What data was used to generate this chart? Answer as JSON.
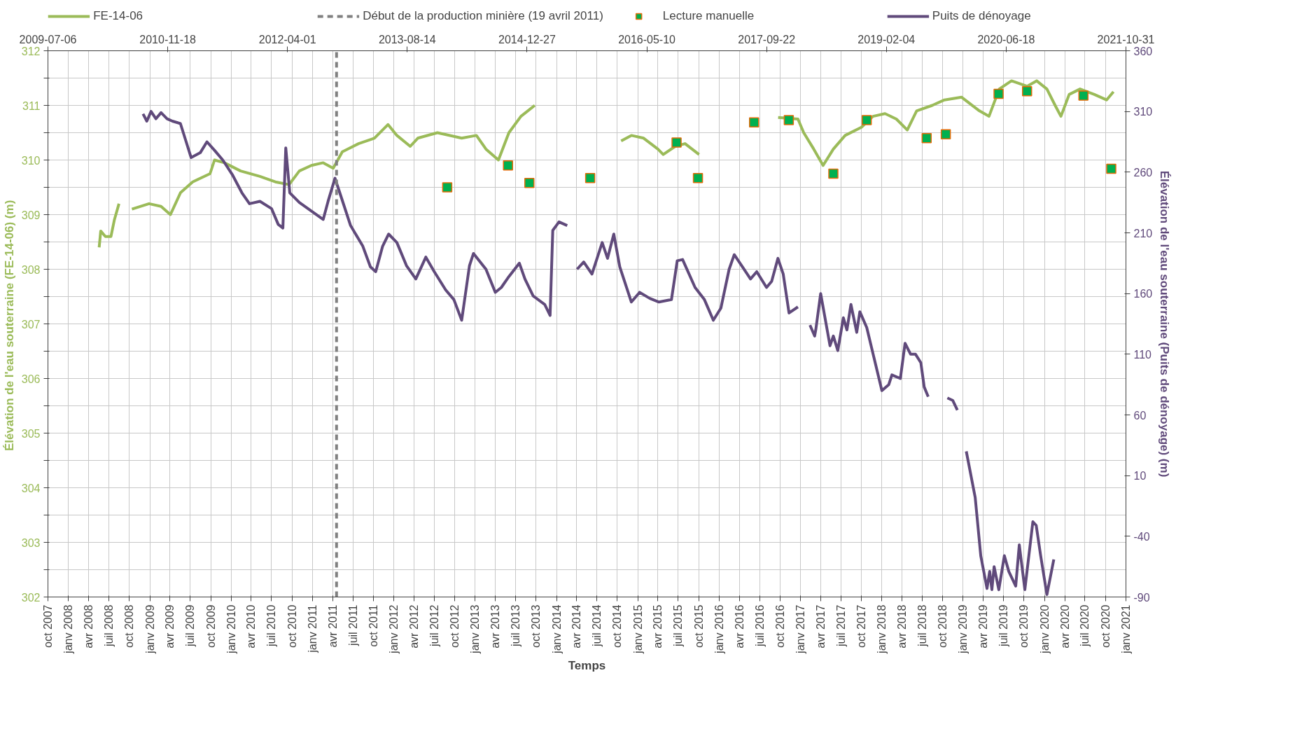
{
  "chart_data": {
    "type": "scatter",
    "xlabel": "Temps",
    "ylabel": "Élévation de l'eau souterraine (FE-14-06)  (m)",
    "y2label": "Élévation de l'eau souterraine (Puits de dénoyage) (m)",
    "xlim": [
      "2007-10-01",
      "2021-01-01"
    ],
    "xticks": [
      {
        "value": "2007-10-01",
        "label": "oct 2007"
      },
      {
        "value": "2008-01-01",
        "label": "janv 2008"
      },
      {
        "value": "2008-04-01",
        "label": "avr 2008"
      },
      {
        "value": "2008-07-01",
        "label": "juil 2008"
      },
      {
        "value": "2008-10-01",
        "label": "oct 2008"
      },
      {
        "value": "2009-01-01",
        "label": "janv 2009"
      },
      {
        "value": "2009-04-01",
        "label": "avr 2009"
      },
      {
        "value": "2009-07-01",
        "label": "juil 2009"
      },
      {
        "value": "2009-10-01",
        "label": "oct 2009"
      },
      {
        "value": "2010-01-01",
        "label": "janv 2010"
      },
      {
        "value": "2010-04-01",
        "label": "avr 2010"
      },
      {
        "value": "2010-07-01",
        "label": "juil 2010"
      },
      {
        "value": "2010-10-01",
        "label": "oct 2010"
      },
      {
        "value": "2011-01-01",
        "label": "janv 2011"
      },
      {
        "value": "2011-04-01",
        "label": "avr 2011"
      },
      {
        "value": "2011-07-01",
        "label": "juil 2011"
      },
      {
        "value": "2011-10-01",
        "label": "oct 2011"
      },
      {
        "value": "2012-01-01",
        "label": "janv 2012"
      },
      {
        "value": "2012-04-01",
        "label": "avr 2012"
      },
      {
        "value": "2012-07-01",
        "label": "juil 2012"
      },
      {
        "value": "2012-10-01",
        "label": "oct 2012"
      },
      {
        "value": "2013-01-01",
        "label": "janv 2013"
      },
      {
        "value": "2013-04-01",
        "label": "avr 2013"
      },
      {
        "value": "2013-07-01",
        "label": "juil 2013"
      },
      {
        "value": "2013-10-01",
        "label": "oct 2013"
      },
      {
        "value": "2014-01-01",
        "label": "janv 2014"
      },
      {
        "value": "2014-04-01",
        "label": "avr 2014"
      },
      {
        "value": "2014-07-01",
        "label": "juil 2014"
      },
      {
        "value": "2014-10-01",
        "label": "oct 2014"
      },
      {
        "value": "2015-01-01",
        "label": "janv 2015"
      },
      {
        "value": "2015-04-01",
        "label": "avr 2015"
      },
      {
        "value": "2015-07-01",
        "label": "juil 2015"
      },
      {
        "value": "2015-10-01",
        "label": "oct 2015"
      },
      {
        "value": "2016-01-01",
        "label": "janv 2016"
      },
      {
        "value": "2016-04-01",
        "label": "avr 2016"
      },
      {
        "value": "2016-07-01",
        "label": "juil 2016"
      },
      {
        "value": "2016-10-01",
        "label": "oct 2016"
      },
      {
        "value": "2017-01-01",
        "label": "janv 2017"
      },
      {
        "value": "2017-04-01",
        "label": "avr 2017"
      },
      {
        "value": "2017-07-01",
        "label": "juil 2017"
      },
      {
        "value": "2017-10-01",
        "label": "oct 2017"
      },
      {
        "value": "2018-01-01",
        "label": "janv 2018"
      },
      {
        "value": "2018-04-01",
        "label": "avr 2018"
      },
      {
        "value": "2018-07-01",
        "label": "juil 2018"
      },
      {
        "value": "2018-10-01",
        "label": "oct 2018"
      },
      {
        "value": "2019-01-01",
        "label": "janv 2019"
      },
      {
        "value": "2019-04-01",
        "label": "avr 2019"
      },
      {
        "value": "2019-07-01",
        "label": "juil 2019"
      },
      {
        "value": "2019-10-01",
        "label": "oct 2019"
      },
      {
        "value": "2020-01-01",
        "label": "janv 2020"
      },
      {
        "value": "2020-04-01",
        "label": "avr 2020"
      },
      {
        "value": "2020-07-01",
        "label": "juil 2020"
      },
      {
        "value": "2020-10-01",
        "label": "oct 2020"
      },
      {
        "value": "2021-01-01",
        "label": "janv 2021"
      }
    ],
    "x2lim": [
      "2009-07-06",
      "2021-10-31"
    ],
    "x2ticks": [
      "2009-07-06",
      "2010-11-18",
      "2012-04-01",
      "2013-08-14",
      "2014-12-27",
      "2016-05-10",
      "2017-09-22",
      "2019-02-04",
      "2020-06-18",
      "2021-10-31"
    ],
    "ylim": [
      302,
      312
    ],
    "yticks": [
      302,
      {
        "value": 302.5,
        "label": null
      },
      303,
      {
        "value": 303.5,
        "label": null
      },
      304,
      {
        "value": 304.5,
        "label": null
      },
      305,
      {
        "value": 305.5,
        "label": null
      },
      306,
      {
        "value": 306.5,
        "label": null
      },
      307,
      {
        "value": 307.5,
        "label": null
      },
      308,
      {
        "value": 308.5,
        "label": null
      },
      309,
      {
        "value": 309.5,
        "label": null
      },
      310,
      {
        "value": 310.5,
        "label": null
      },
      311,
      {
        "value": 311.5,
        "label": null
      },
      312
    ],
    "y2lim": [
      -90,
      360
    ],
    "y2ticks": [
      -90,
      -40,
      10,
      60,
      110,
      160,
      210,
      260,
      310,
      360
    ],
    "grid": true,
    "legend": "top",
    "ref_lines": [
      {
        "axis": "x",
        "value": "2011-04-19",
        "label": "Début de la production minière (19 avril 2011)",
        "color": "#808080",
        "line_style": "dashed"
      }
    ],
    "series": [
      {
        "name": "FE-14-06",
        "type": "line",
        "color": "#9bbb59",
        "x": [
          "2008-05-18",
          "2008-05-25",
          "2008-06-15",
          "2008-07-10",
          "2008-07-25",
          "2008-08-15",
          "2008-09-15",
          "2008-10-12",
          "2008-12-28",
          "2009-02-20",
          "2009-04-03",
          "2009-05-18",
          "2009-07-12",
          "2009-09-28",
          "2009-10-18",
          "2009-12-01",
          "2010-02-12",
          "2010-05-10",
          "2010-07-18",
          "2010-09-18",
          "2010-11-03",
          "2010-12-27",
          "2011-02-18",
          "2011-04-04",
          "2011-05-15",
          "2011-07-27",
          "2011-10-06",
          "2011-12-06",
          "2012-01-15",
          "2012-03-15",
          "2012-04-18",
          "2012-07-15",
          "2012-11-01",
          "2013-01-06",
          "2013-02-18",
          "2013-04-15",
          "2013-06-01",
          "2013-07-25",
          "2013-09-25",
          "2014-04-01",
          "2014-10-18",
          "2014-12-03",
          "2015-01-27",
          "2015-04-01",
          "2015-04-25",
          "2015-06-18",
          "2015-08-01",
          "2015-10-03",
          "2016-04-01",
          "2016-09-22",
          "2016-12-20",
          "2017-01-15",
          "2017-03-01",
          "2017-04-12",
          "2017-05-28",
          "2017-07-20",
          "2017-10-01",
          "2017-11-22",
          "2018-01-15",
          "2018-03-07",
          "2018-04-25",
          "2018-06-06",
          "2018-08-15",
          "2018-10-09",
          "2018-12-25",
          "2019-03-15",
          "2019-04-27",
          "2019-06-12",
          "2019-08-06",
          "2019-10-15",
          "2019-11-27",
          "2020-01-12",
          "2020-02-18",
          "2020-03-15",
          "2020-04-21",
          "2020-06-09",
          "2020-08-12",
          "2020-10-06",
          "2020-11-06"
        ],
        "values": [
          308.4,
          308.7,
          308.6,
          308.6,
          308.9,
          309.2,
          null,
          309.1,
          309.2,
          309.15,
          309.0,
          309.4,
          309.6,
          309.75,
          310.0,
          309.95,
          309.8,
          309.7,
          309.6,
          309.55,
          309.8,
          309.9,
          309.95,
          309.85,
          310.15,
          310.3,
          310.4,
          310.65,
          310.45,
          310.25,
          310.4,
          310.5,
          310.4,
          310.45,
          310.2,
          310.0,
          310.5,
          310.8,
          311.0,
          null,
          310.35,
          310.45,
          310.4,
          310.2,
          310.1,
          310.25,
          310.3,
          310.1,
          null,
          310.78,
          310.75,
          310.5,
          310.2,
          309.9,
          310.2,
          310.45,
          310.6,
          310.8,
          310.85,
          310.75,
          310.55,
          310.9,
          311.0,
          311.1,
          311.15,
          310.9,
          310.8,
          311.3,
          311.45,
          311.35,
          311.45,
          311.3,
          311.0,
          310.8,
          311.2,
          311.3,
          311.2,
          311.1,
          311.25
        ]
      },
      {
        "name": "Lecture manuelle",
        "marker": "square",
        "color": "#00b050",
        "x": [
          "2012-08-28",
          "2013-05-28",
          "2013-09-01",
          "2014-06-01",
          "2015-06-24",
          "2015-09-28",
          "2016-06-06",
          "2016-11-09",
          "2017-05-28",
          "2017-10-25",
          "2018-07-21",
          "2018-10-15",
          "2019-06-09",
          "2019-10-15",
          "2020-06-24",
          "2020-10-27"
        ],
        "values": [
          309.5,
          309.9,
          309.58,
          309.67,
          310.32,
          309.67,
          310.69,
          310.73,
          309.75,
          310.73,
          310.4,
          310.47,
          311.21,
          311.26,
          311.18,
          309.84
        ]
      },
      {
        "name": "Puits de dénoyage",
        "type": "line",
        "axis": "y2",
        "color": "#604a7b",
        "x": [
          "2008-12-01",
          "2008-12-18",
          "2009-01-06",
          "2009-01-28",
          "2009-02-20",
          "2009-03-19",
          "2009-04-12",
          "2009-05-18",
          "2009-07-05",
          "2009-08-15",
          "2009-09-14",
          "2009-10-18",
          "2009-11-24",
          "2010-01-06",
          "2010-02-18",
          "2010-03-24",
          "2010-05-10",
          "2010-07-01",
          "2010-07-31",
          "2010-08-21",
          "2010-09-03",
          "2010-09-21",
          "2010-11-03",
          "2010-12-27",
          "2011-02-18",
          "2011-03-12",
          "2011-04-12",
          "2011-05-09",
          "2011-06-21",
          "2011-08-15",
          "2011-09-18",
          "2011-10-12",
          "2011-11-12",
          "2011-12-09",
          "2012-01-15",
          "2012-02-27",
          "2012-04-09",
          "2012-05-24",
          "2012-07-01",
          "2012-08-21",
          "2012-09-27",
          "2012-11-01",
          "2012-12-06",
          "2012-12-24",
          "2013-02-18",
          "2013-04-01",
          "2013-04-28",
          "2013-06-01",
          "2013-07-18",
          "2013-08-12",
          "2013-09-18",
          "2013-11-09",
          "2013-12-03",
          "2013-12-15",
          "2014-01-12",
          "2014-02-18",
          "2014-03-10",
          "2014-04-03",
          "2014-05-03",
          "2014-06-09",
          "2014-07-25",
          "2014-08-18",
          "2014-09-15",
          "2014-10-12",
          "2014-12-03",
          "2015-01-09",
          "2015-02-24",
          "2015-04-06",
          "2015-06-01",
          "2015-06-27",
          "2015-07-21",
          "2015-09-15",
          "2015-10-27",
          "2015-12-06",
          "2016-01-09",
          "2016-02-15",
          "2016-03-09",
          "2016-04-15",
          "2016-05-21",
          "2016-06-18",
          "2016-08-01",
          "2016-08-24",
          "2016-09-21",
          "2016-10-15",
          "2016-11-10",
          "2016-12-20",
          "2017-01-20",
          "2017-02-12",
          "2017-03-05",
          "2017-03-10",
          "2017-04-01",
          "2017-05-13",
          "2017-05-28",
          "2017-06-17",
          "2017-07-12",
          "2017-07-28",
          "2017-08-15",
          "2017-09-10",
          "2017-09-24",
          "2017-10-25",
          "2018-01-01",
          "2018-02-01",
          "2018-02-15",
          "2018-03-25",
          "2018-04-15",
          "2018-05-10",
          "2018-06-01",
          "2018-06-25",
          "2018-07-10",
          "2018-07-28",
          "2018-09-15",
          "2018-10-22",
          "2018-11-15",
          "2018-12-06",
          "2018-12-25",
          "2019-01-15",
          "2019-02-24",
          "2019-03-21",
          "2019-04-18",
          "2019-04-30",
          "2019-05-10",
          "2019-05-20",
          "2019-06-10",
          "2019-07-05",
          "2019-07-25",
          "2019-08-25",
          "2019-09-10",
          "2019-10-05",
          "2019-11-10",
          "2019-11-25",
          "2019-12-15",
          "2020-01-12",
          "2020-02-12"
        ],
        "values": [
          308,
          302,
          310,
          304,
          309,
          304,
          302,
          300,
          272,
          276,
          285,
          278,
          270,
          258,
          243,
          234,
          236,
          230,
          217,
          214,
          280,
          243,
          235,
          228,
          221,
          236,
          255,
          240,
          216,
          199,
          182,
          178,
          199,
          209,
          202,
          183,
          172,
          190,
          178,
          163,
          155,
          138,
          183,
          193,
          180,
          161,
          165,
          174,
          185,
          172,
          158,
          151,
          142,
          212,
          219,
          216,
          null,
          180,
          186,
          176,
          202,
          189,
          209,
          182,
          153,
          161,
          156,
          153,
          155,
          187,
          188,
          165,
          155,
          138,
          148,
          180,
          192,
          182,
          172,
          178,
          165,
          170,
          189,
          176,
          144,
          149,
          null,
          134,
          125,
          130,
          160,
          117,
          125,
          113,
          140,
          130,
          151,
          128,
          145,
          132,
          80,
          85,
          93,
          90,
          119,
          110,
          110,
          103,
          83,
          75,
          null,
          74,
          72,
          64,
          null,
          30,
          -8,
          -56,
          -83,
          -69,
          -84,
          -65,
          -84,
          -56,
          -69,
          -81,
          -47,
          -84,
          -28,
          -31,
          -56,
          -88,
          -59
        ]
      }
    ]
  }
}
